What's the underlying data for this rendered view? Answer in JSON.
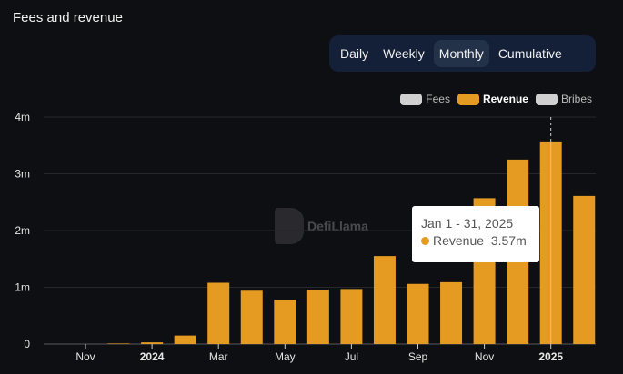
{
  "title": "Fees and revenue",
  "tabs": [
    {
      "label": "Daily"
    },
    {
      "label": "Weekly"
    },
    {
      "label": "Monthly",
      "active": true
    },
    {
      "label": "Cumulative"
    }
  ],
  "legend": [
    {
      "label": "Fees",
      "color": "#d0d0d0",
      "active": false
    },
    {
      "label": "Revenue",
      "color": "#e59a22",
      "active": true
    },
    {
      "label": "Bribes",
      "color": "#d0d0d0",
      "active": false
    }
  ],
  "watermark": "DefiLlama",
  "tooltip": {
    "date": "Jan 1 - 31, 2025",
    "series": "Revenue",
    "value": "3.57m"
  },
  "chart_data": {
    "type": "bar",
    "categories": [
      "Nov 2023",
      "Dec 2023",
      "Jan 2024",
      "Feb 2024",
      "Mar 2024",
      "Apr 2024",
      "May 2024",
      "Jun 2024",
      "Jul 2024",
      "Aug 2024",
      "Sep 2024",
      "Oct 2024",
      "Nov 2024",
      "Dec 2024",
      "Jan 2025",
      "Feb 2025"
    ],
    "series": [
      {
        "name": "Revenue",
        "color": "#e59a22",
        "values": [
          0,
          0.01,
          0.03,
          0.15,
          1.08,
          0.94,
          0.78,
          0.96,
          0.97,
          1.55,
          1.06,
          1.09,
          2.57,
          3.25,
          3.57,
          2.61
        ]
      }
    ],
    "yticks": [
      "0",
      "1m",
      "2m",
      "3m",
      "4m"
    ],
    "ylim": [
      0,
      4
    ],
    "xticks": [
      {
        "label": "Nov",
        "index": 0
      },
      {
        "label": "2024",
        "index": 2,
        "bold": true
      },
      {
        "label": "Mar",
        "index": 4
      },
      {
        "label": "May",
        "index": 6
      },
      {
        "label": "Jul",
        "index": 8
      },
      {
        "label": "Sep",
        "index": 10
      },
      {
        "label": "Nov",
        "index": 12
      },
      {
        "label": "2025",
        "index": 14,
        "bold": true
      }
    ],
    "grid": true,
    "legend_position": "top-right",
    "highlight_index": 14
  }
}
